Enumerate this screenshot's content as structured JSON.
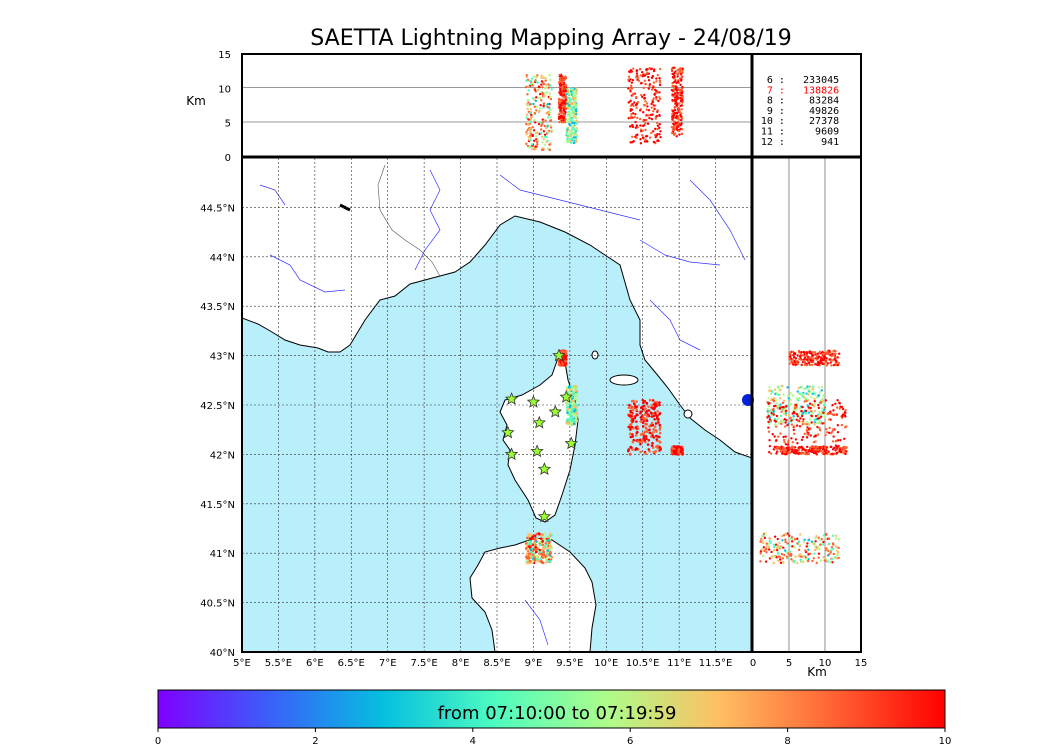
{
  "title": "SAETTA Lightning Mapping Array - 24/08/19",
  "map": {
    "lon_ticks": [
      "5°E",
      "5.5°E",
      "6°E",
      "6.5°E",
      "7°E",
      "7.5°E",
      "8°E",
      "8.5°E",
      "9°E",
      "9.5°E",
      "10°E",
      "10.5°E",
      "11°E",
      "11.5°E"
    ],
    "lat_ticks": [
      "40°N",
      "40.5°N",
      "41°N",
      "41.5°N",
      "42°N",
      "42.5°N",
      "43°N",
      "43.5°N",
      "44°N",
      "44.5°N"
    ]
  },
  "top_panel": {
    "ylabel": "Km",
    "ticks": [
      "0",
      "5",
      "10",
      "15"
    ]
  },
  "right_panel": {
    "xlabel": "Km",
    "ticks": [
      "0",
      "5",
      "10",
      "15"
    ]
  },
  "stats": [
    {
      "k": "6",
      "v": "233045",
      "color": "#000000"
    },
    {
      "k": "7",
      "v": "138826",
      "color": "#ff0000"
    },
    {
      "k": "8",
      "v": "83284",
      "color": "#000000"
    },
    {
      "k": "9",
      "v": "49826",
      "color": "#000000"
    },
    {
      "k": "10",
      "v": "27378",
      "color": "#000000"
    },
    {
      "k": "11",
      "v": "9609",
      "color": "#000000"
    },
    {
      "k": "12",
      "v": "941",
      "color": "#000000"
    }
  ],
  "colorbar": {
    "label": "from 07:10:00 to 07:19:59",
    "ticks": [
      "0",
      "2",
      "4",
      "6",
      "8",
      "10"
    ],
    "range": [
      0,
      10
    ],
    "colors": [
      "#7f00ff",
      "#3a60fa",
      "#05bfe0",
      "#4efcc0",
      "#aefc8a",
      "#ffbe62",
      "#ff6333",
      "#ff0000"
    ]
  },
  "chart_data": {
    "type": "scatter",
    "title": "SAETTA Lightning Mapping Array - 24/08/19",
    "xlim": [
      5,
      12
    ],
    "ylim": [
      40,
      45
    ],
    "altitude_range_km": [
      0,
      15
    ],
    "time_range": "07:10:00 to 07:19:59",
    "clusters": [
      {
        "name": "",
        "lon": [
          9.35,
          9.45
        ],
        "lat": [
          42.9,
          43.05
        ],
        "alt_km": [
          5,
          12
        ],
        "time_minutes": [
          8,
          10
        ]
      },
      {
        "name": "",
        "lon": [
          9.45,
          9.6
        ],
        "lat": [
          42.3,
          42.7
        ],
        "alt_km": [
          2,
          10
        ],
        "time_minutes": [
          2,
          7
        ]
      },
      {
        "name": "",
        "lon": [
          10.3,
          10.75
        ],
        "lat": [
          42.0,
          42.55
        ],
        "alt_km": [
          2,
          13
        ],
        "time_minutes": [
          8,
          10
        ]
      },
      {
        "name": "",
        "lon": [
          10.9,
          11.05
        ],
        "lat": [
          42.0,
          42.08
        ],
        "alt_km": [
          3,
          13
        ],
        "time_minutes": [
          8,
          10
        ]
      },
      {
        "name": "",
        "lon": [
          8.9,
          9.25
        ],
        "lat": [
          40.9,
          41.2
        ],
        "alt_km": [
          1,
          12
        ],
        "time_minutes": [
          2,
          10
        ]
      }
    ],
    "station_markers": [
      [
        9.35,
        43.0
      ],
      [
        8.7,
        42.56
      ],
      [
        9.0,
        42.53
      ],
      [
        9.45,
        42.58
      ],
      [
        9.3,
        42.43
      ],
      [
        9.08,
        42.32
      ],
      [
        8.65,
        42.22
      ],
      [
        9.52,
        42.11
      ],
      [
        8.7,
        42.0
      ],
      [
        9.05,
        42.03
      ],
      [
        9.15,
        41.85
      ],
      [
        9.15,
        41.37
      ]
    ]
  }
}
